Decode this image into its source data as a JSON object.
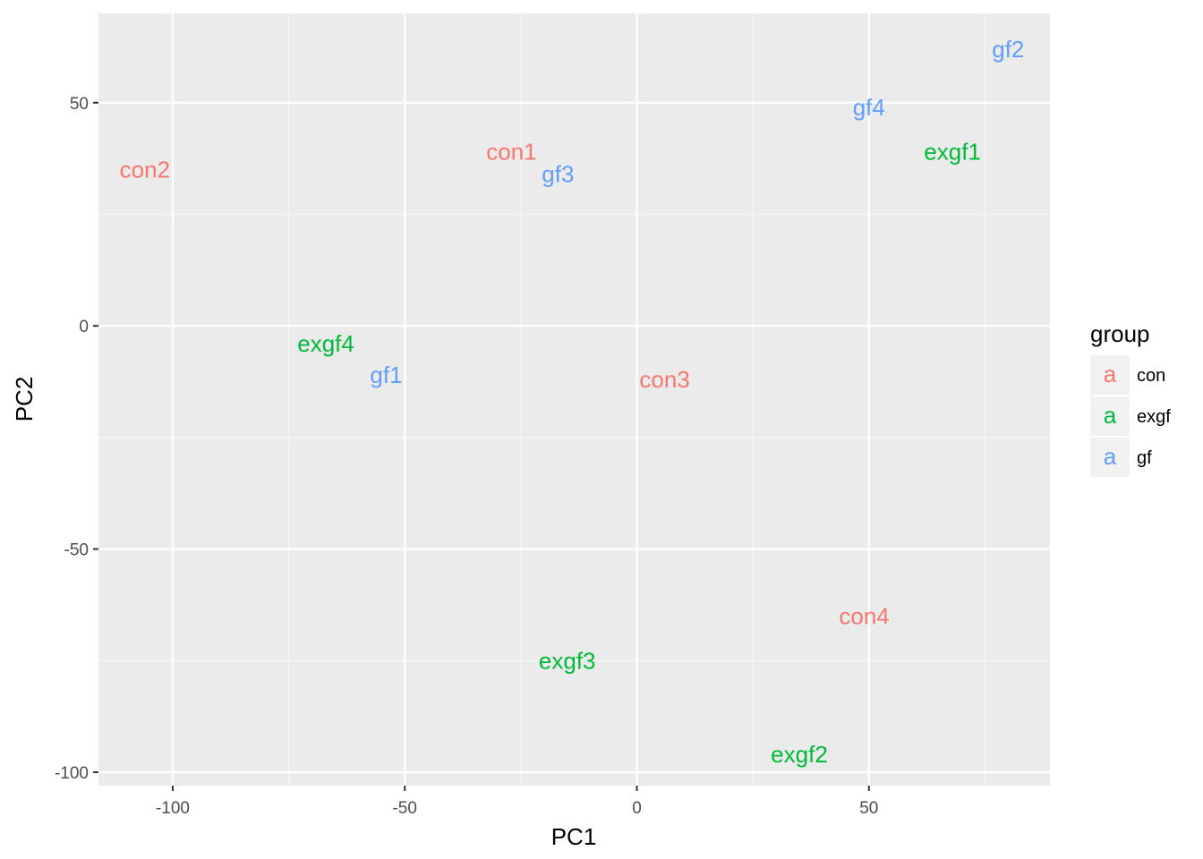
{
  "chart_data": {
    "type": "scatter",
    "xlabel": "PC1",
    "ylabel": "PC2",
    "xlim": [
      -116,
      89
    ],
    "ylim": [
      -103,
      70
    ],
    "x_ticks": [
      -100,
      -50,
      0,
      50
    ],
    "y_ticks": [
      -100,
      -50,
      0,
      50
    ],
    "x_tick_labels": [
      "-100",
      "-50",
      "0",
      "50"
    ],
    "y_tick_labels": [
      "-100",
      "-50",
      "0",
      "50"
    ],
    "grid": true,
    "legend": {
      "title": "group",
      "position": "right",
      "key_glyph": "a",
      "entries": [
        {
          "label": "con",
          "color": "#F8766D"
        },
        {
          "label": "exgf",
          "color": "#00BA38"
        },
        {
          "label": "gf",
          "color": "#619CFF"
        }
      ]
    },
    "points": [
      {
        "label": "con1",
        "group": "con",
        "x": -27,
        "y": 39
      },
      {
        "label": "con2",
        "group": "con",
        "x": -106,
        "y": 35
      },
      {
        "label": "con3",
        "group": "con",
        "x": 6,
        "y": -12
      },
      {
        "label": "con4",
        "group": "con",
        "x": 49,
        "y": -65
      },
      {
        "label": "exgf1",
        "group": "exgf",
        "x": 68,
        "y": 39
      },
      {
        "label": "exgf2",
        "group": "exgf",
        "x": 35,
        "y": -96
      },
      {
        "label": "exgf3",
        "group": "exgf",
        "x": -15,
        "y": -75
      },
      {
        "label": "exgf4",
        "group": "exgf",
        "x": -67,
        "y": -4
      },
      {
        "label": "gf1",
        "group": "gf",
        "x": -54,
        "y": -11
      },
      {
        "label": "gf2",
        "group": "gf",
        "x": 80,
        "y": 62
      },
      {
        "label": "gf3",
        "group": "gf",
        "x": -17,
        "y": 34
      },
      {
        "label": "gf4",
        "group": "gf",
        "x": 50,
        "y": 49
      }
    ]
  }
}
